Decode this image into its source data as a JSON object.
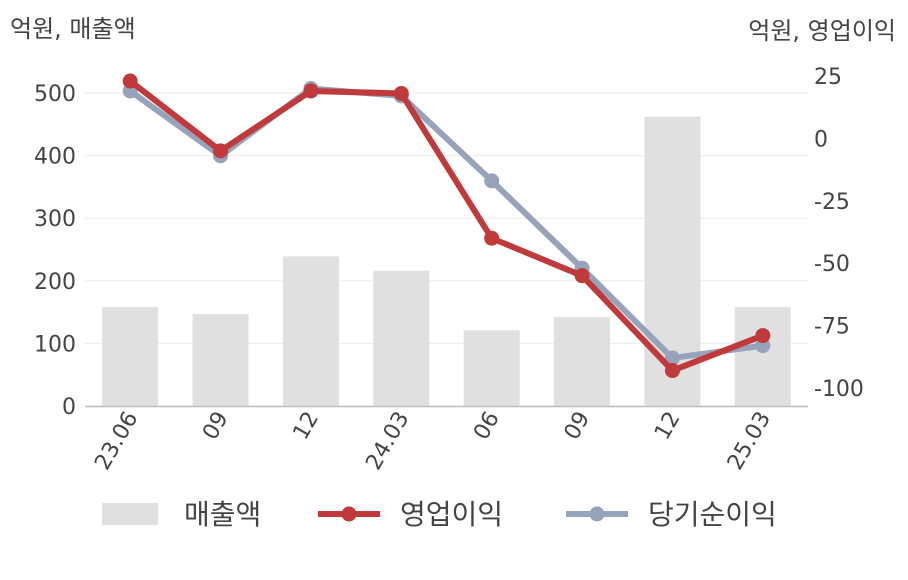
{
  "chart_data": {
    "type": "bar",
    "categories": [
      "23.06",
      "09",
      "12",
      "24.03",
      "06",
      "09",
      "12",
      "25.03"
    ],
    "left_axis_unit": "억원, 매출액",
    "right_axis_unit": "억원, 영업이익",
    "left_ylim": [
      0,
      550
    ],
    "left_ticks": [
      0,
      100,
      200,
      300,
      400,
      500
    ],
    "right_ylim": [
      -107,
      30
    ],
    "right_ticks": [
      25,
      0,
      -25,
      -50,
      -75,
      -100
    ],
    "grid": true,
    "legend_position": "bottom",
    "series": [
      {
        "name": "매출액",
        "type": "bar",
        "axis": "left",
        "color": "#e0e0e0",
        "values": [
          158,
          147,
          239,
          216,
          121,
          142,
          462,
          158
        ]
      },
      {
        "name": "영업이익",
        "type": "line",
        "axis": "right",
        "color": "#c0393b",
        "values": [
          23,
          -5,
          19,
          18,
          -40,
          -55,
          -93,
          -79
        ]
      },
      {
        "name": "당기순이익",
        "type": "line",
        "axis": "right",
        "color": "#97a2bb",
        "values": [
          19,
          -7,
          20,
          17,
          -17,
          -52,
          -88,
          -83
        ]
      }
    ]
  }
}
